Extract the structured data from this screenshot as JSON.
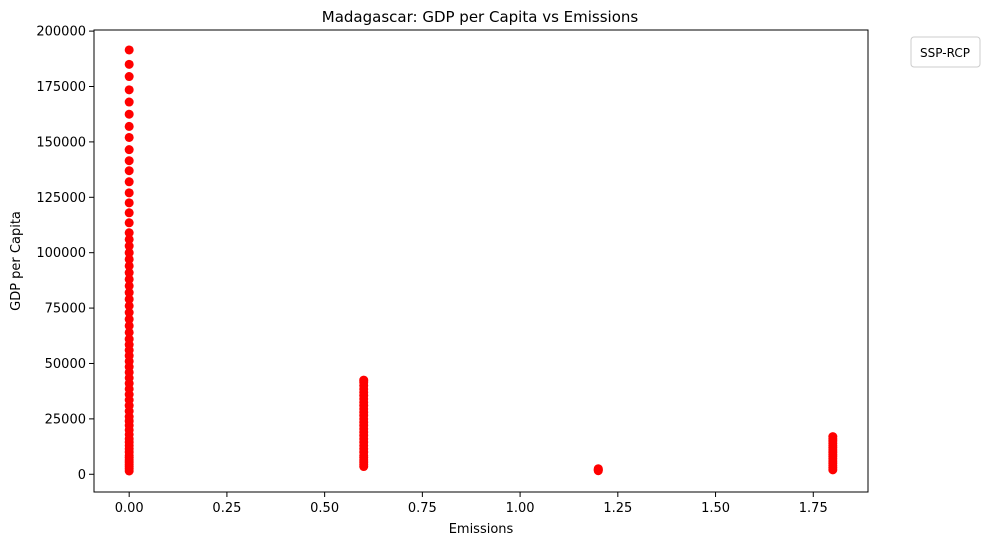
{
  "chart_data": {
    "type": "scatter",
    "title": "Madagascar: GDP per Capita vs Emissions",
    "xlabel": "Emissions",
    "ylabel": "GDP per Capita",
    "xlim": [
      -0.09,
      1.89
    ],
    "ylim": [
      -8000,
      200500
    ],
    "xticks": [
      0.0,
      0.25,
      0.5,
      0.75,
      1.0,
      1.25,
      1.5,
      1.75
    ],
    "xtick_labels": [
      "0.00",
      "0.25",
      "0.50",
      "0.75",
      "1.00",
      "1.25",
      "1.50",
      "1.75"
    ],
    "yticks": [
      0,
      25000,
      50000,
      75000,
      100000,
      125000,
      150000,
      175000,
      200000
    ],
    "ytick_labels": [
      "0",
      "25000",
      "50000",
      "75000",
      "100000",
      "125000",
      "150000",
      "175000",
      "200000"
    ],
    "grid": false,
    "legend": {
      "title": "SSP-RCP",
      "placement": "outside-top-right"
    },
    "marker_color": "#ff0000",
    "series": [
      {
        "name": "",
        "points": [
          [
            0,
            1500
          ],
          [
            0,
            2500
          ],
          [
            0,
            3500
          ],
          [
            0,
            4500
          ],
          [
            0,
            5500
          ],
          [
            0,
            6500
          ],
          [
            0,
            7500
          ],
          [
            0,
            8500
          ],
          [
            0,
            10000
          ],
          [
            0,
            11500
          ],
          [
            0,
            13000
          ],
          [
            0,
            14500
          ],
          [
            0,
            16000
          ],
          [
            0,
            18000
          ],
          [
            0,
            20000
          ],
          [
            0,
            22000
          ],
          [
            0,
            24000
          ],
          [
            0,
            26000
          ],
          [
            0,
            28500
          ],
          [
            0,
            31000
          ],
          [
            0,
            33500
          ],
          [
            0,
            36000
          ],
          [
            0,
            38500
          ],
          [
            0,
            41000
          ],
          [
            0,
            43500
          ],
          [
            0,
            46000
          ],
          [
            0,
            48500
          ],
          [
            0,
            51000
          ],
          [
            0,
            53500
          ],
          [
            0,
            56000
          ],
          [
            0,
            58500
          ],
          [
            0,
            61000
          ],
          [
            0,
            64000
          ],
          [
            0,
            67000
          ],
          [
            0,
            70000
          ],
          [
            0,
            73000
          ],
          [
            0,
            76000
          ],
          [
            0,
            79000
          ],
          [
            0,
            82000
          ],
          [
            0,
            85000
          ],
          [
            0,
            88000
          ],
          [
            0,
            91000
          ],
          [
            0,
            94000
          ],
          [
            0,
            97000
          ],
          [
            0,
            100000
          ],
          [
            0,
            103000
          ],
          [
            0,
            106000
          ],
          [
            0,
            109000
          ],
          [
            0,
            113500
          ],
          [
            0,
            118000
          ],
          [
            0,
            122500
          ],
          [
            0,
            127000
          ],
          [
            0,
            132000
          ],
          [
            0,
            137000
          ],
          [
            0,
            141500
          ],
          [
            0,
            146500
          ],
          [
            0,
            152000
          ],
          [
            0,
            157000
          ],
          [
            0,
            162500
          ],
          [
            0,
            168000
          ],
          [
            0,
            173500
          ],
          [
            0,
            179500
          ],
          [
            0,
            185000
          ],
          [
            0,
            191500
          ],
          [
            0.6,
            3500
          ],
          [
            0.6,
            4500
          ],
          [
            0.6,
            5500
          ],
          [
            0.6,
            6500
          ],
          [
            0.6,
            7500
          ],
          [
            0.6,
            8500
          ],
          [
            0.6,
            10000
          ],
          [
            0.6,
            11500
          ],
          [
            0.6,
            13000
          ],
          [
            0.6,
            14500
          ],
          [
            0.6,
            16000
          ],
          [
            0.6,
            17500
          ],
          [
            0.6,
            19000
          ],
          [
            0.6,
            20500
          ],
          [
            0.6,
            22000
          ],
          [
            0.6,
            23500
          ],
          [
            0.6,
            25000
          ],
          [
            0.6,
            26500
          ],
          [
            0.6,
            28000
          ],
          [
            0.6,
            29500
          ],
          [
            0.6,
            31000
          ],
          [
            0.6,
            32500
          ],
          [
            0.6,
            34000
          ],
          [
            0.6,
            35500
          ],
          [
            0.6,
            37000
          ],
          [
            0.6,
            38500
          ],
          [
            0.6,
            40000
          ],
          [
            0.6,
            41500
          ],
          [
            0.6,
            42500
          ],
          [
            1.2,
            1600
          ],
          [
            1.2,
            1900
          ],
          [
            1.2,
            2200
          ],
          [
            1.2,
            2500
          ],
          [
            1.8,
            2000
          ],
          [
            1.8,
            3000
          ],
          [
            1.8,
            4000
          ],
          [
            1.8,
            5000
          ],
          [
            1.8,
            6000
          ],
          [
            1.8,
            7000
          ],
          [
            1.8,
            8000
          ],
          [
            1.8,
            9000
          ],
          [
            1.8,
            10000
          ],
          [
            1.8,
            11000
          ],
          [
            1.8,
            12000
          ],
          [
            1.8,
            13000
          ],
          [
            1.8,
            14000
          ],
          [
            1.8,
            15000
          ],
          [
            1.8,
            16000
          ],
          [
            1.8,
            17000
          ]
        ]
      }
    ]
  }
}
